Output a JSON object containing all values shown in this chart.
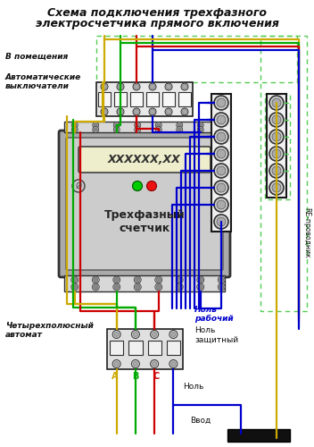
{
  "title_line1": "Схема подключения трехфазного",
  "title_line2": "электросчетчика прямого включения",
  "label_vpomeschenia": "В помещения",
  "label_avt": "Автоматические\nвыключатели",
  "label_4pol": "Четырехполюсный\nавтомат",
  "label_trehfaz": "Трехфазный\nсчетчик",
  "label_display": "XXXXXX,XX",
  "label_nol_rab": "Ноль\nрабочий",
  "label_nol_zash": "Ноль\nзащитный",
  "label_nol": "Ноль",
  "label_vvod": "Ввод",
  "label_re": "RE-проводник",
  "label_a": "A",
  "label_b": "B",
  "label_c": "C",
  "bg_color": "#ffffff",
  "col_yellow": "#ccaa00",
  "col_green": "#00aa00",
  "col_red": "#cc0000",
  "col_blue": "#0000cc",
  "col_green_dash": "#55cc55",
  "col_black": "#000000",
  "col_gray_meter": "#aaaaaa",
  "col_gray_light": "#cccccc",
  "col_gray_term": "#d0d0d0"
}
